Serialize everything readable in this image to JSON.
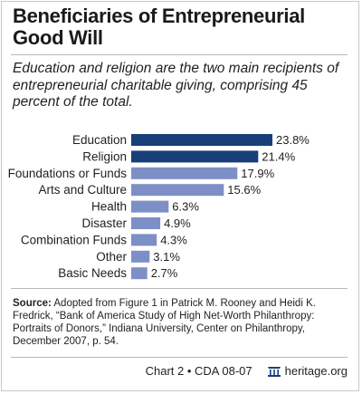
{
  "header": {
    "title": "Beneficiaries of Entrepreneurial Good Will",
    "subtitle": "Education and religion are the two main recipients of entrepreneurial charitable giving, comprising 45 percent of the total."
  },
  "chart_data": {
    "type": "bar",
    "orientation": "horizontal",
    "categories": [
      "Education",
      "Religion",
      "Foundations or Funds",
      "Arts and Culture",
      "Health",
      "Disaster",
      "Combination Funds",
      "Other",
      "Basic Needs"
    ],
    "values": [
      23.8,
      21.4,
      17.9,
      15.6,
      6.3,
      4.9,
      4.3,
      3.1,
      2.7
    ],
    "value_labels": [
      "23.8%",
      "21.4%",
      "17.9%",
      "15.6%",
      "6.3%",
      "4.9%",
      "4.3%",
      "3.1%",
      "2.7%"
    ],
    "colors": [
      "#173f7a",
      "#173f7a",
      "#7d8fc6",
      "#7d8fc6",
      "#7d8fc6",
      "#7d8fc6",
      "#7d8fc6",
      "#7d8fc6",
      "#7d8fc6"
    ],
    "unit": "%",
    "grid": false,
    "legend": "none"
  },
  "source": {
    "label": "Source:",
    "text": "Adopted from Figure 1 in Patrick M. Rooney and Heidi K. Fredrick, “Bank of America Study of High Net-Worth Philanthropy: Portraits of Donors,”  Indiana University, Center on Philanthropy, December 2007, p. 54."
  },
  "footer": {
    "chart_id": "Chart 2 • CDA 08-07",
    "site": "heritage.org",
    "logo_icon": "heritage-bell-icon"
  },
  "colors": {
    "accent_dark": "#173f7a",
    "accent_light": "#7d8fc6"
  }
}
